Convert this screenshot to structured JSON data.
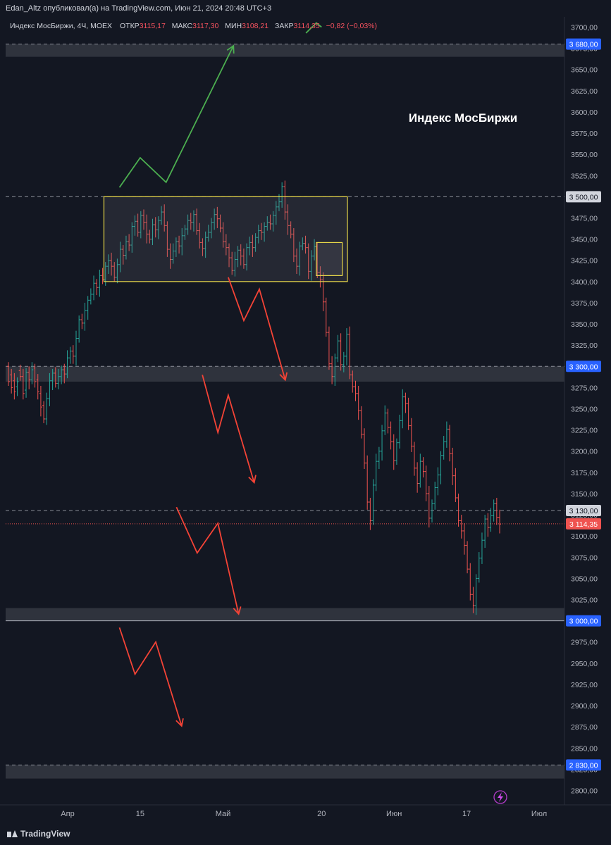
{
  "header": {
    "publish_line": "Edan_Altz опубликовал(а) на TradingView.com, Июн 21, 2024 20:48 UTC+3",
    "symbol_line": "Индекс МосБиржи, 4Ч, MOEX",
    "open_label": "ОТКР",
    "open_value": "3115,17",
    "high_label": "МАКС",
    "high_value": "3117,30",
    "low_label": "МИН",
    "low_value": "3108,21",
    "close_label": "ЗАКР",
    "close_value": "3114,35",
    "change": "−0,82 (−0,03%)"
  },
  "colors": {
    "background": "#131722",
    "up": "#26a69a",
    "down": "#ef5350",
    "box": "#e8d84a",
    "green_arrow": "#4caf50",
    "red_arrow": "#f44336",
    "axis_text": "#b2b5be",
    "zone": "#3a3d47",
    "accent": "#2962ff"
  },
  "footer": {
    "brand": "TradingView",
    "icon": "lightning-icon"
  },
  "chart_data": {
    "type": "candlestick",
    "title": "Индекс МосБиржи",
    "ylim": [
      2787,
      3713
    ],
    "y_ticks": [
      2800,
      2825,
      2850,
      2875,
      2900,
      2925,
      2950,
      2975,
      3000,
      3025,
      3050,
      3075,
      3100,
      3125,
      3150,
      3175,
      3200,
      3225,
      3250,
      3275,
      3300,
      3325,
      3350,
      3375,
      3400,
      3425,
      3450,
      3475,
      3500,
      3525,
      3550,
      3575,
      3600,
      3625,
      3650,
      3675,
      3700
    ],
    "y_tick_labels": [
      "2800,00",
      "2825,00",
      "2850,00",
      "2875,00",
      "2900,00",
      "2925,00",
      "2950,00",
      "2975,00",
      "3000,00",
      "3025,00",
      "3050,00",
      "3075,00",
      "3100,00",
      "3125,00",
      "3150,00",
      "3175,00",
      "3200,00",
      "3225,00",
      "3250,00",
      "3275,00",
      "3300,00",
      "3325,00",
      "3350,00",
      "3375,00",
      "3400,00",
      "3425,00",
      "3450,00",
      "3475,00",
      "3500,00",
      "3525,00",
      "3550,00",
      "3575,00",
      "3600,00",
      "3625,00",
      "3650,00",
      "3675,00",
      "3700,00"
    ],
    "x_ticks": [
      {
        "label": "Апр",
        "date": "2024-04-01"
      },
      {
        "label": "15",
        "date": "2024-04-15"
      },
      {
        "label": "Май",
        "date": "2024-05-01"
      },
      {
        "label": "20",
        "date": "2024-05-20"
      },
      {
        "label": "Июн",
        "date": "2024-06-03"
      },
      {
        "label": "17",
        "date": "2024-06-17"
      },
      {
        "label": "Июл",
        "date": "2024-07-01"
      }
    ],
    "x_range": [
      "2024-03-19",
      "2024-07-07"
    ],
    "price_badges": [
      {
        "value": 3680,
        "text": "3 680,00",
        "style": "blue"
      },
      {
        "value": 3500,
        "text": "3 500,00",
        "style": "gray"
      },
      {
        "value": 3300,
        "text": "3 300,00",
        "style": "blue"
      },
      {
        "value": 3130,
        "text": "3 130,00",
        "style": "gray"
      },
      {
        "value": 3114.35,
        "text": "3 114,35",
        "style": "red"
      },
      {
        "value": 3000,
        "text": "3 000,00",
        "style": "blue"
      },
      {
        "value": 2830,
        "text": "2 830,00",
        "style": "blue"
      }
    ],
    "horizontal_lines": [
      {
        "value": 3680,
        "dashed": true
      },
      {
        "value": 3500,
        "dashed": true
      },
      {
        "value": 3300,
        "dashed": true
      },
      {
        "value": 3130,
        "dashed": true
      },
      {
        "value": 3114.35,
        "dotted": true
      },
      {
        "value": 3000,
        "dashed": false
      },
      {
        "value": 2830,
        "dashed": true
      }
    ],
    "zones": [
      {
        "from": 3665,
        "to": 3680
      },
      {
        "from": 3282,
        "to": 3300
      },
      {
        "from": 3000,
        "to": 3015
      },
      {
        "from": 2814,
        "to": 2830
      }
    ],
    "rectangles": [
      {
        "name": "range-box",
        "x0": "2024-04-08",
        "x1": "2024-05-25",
        "y0": 3400,
        "y1": 3500
      },
      {
        "name": "small-box",
        "x0": "2024-05-19",
        "x1": "2024-05-24",
        "y0": 3407,
        "y1": 3446
      }
    ],
    "arrows": [
      {
        "color": "green",
        "points": [
          [
            "2024-04-11",
            3511
          ],
          [
            "2024-04-15",
            3546
          ],
          [
            "2024-04-20",
            3517
          ],
          [
            "2024-05-03",
            3678
          ]
        ]
      },
      {
        "color": "green",
        "points": [
          [
            "2024-05-17",
            3693
          ],
          [
            "2024-05-19",
            3705
          ],
          [
            "2024-05-20",
            3700
          ]
        ]
      },
      {
        "color": "red",
        "points": [
          [
            "2024-05-02",
            3405
          ],
          [
            "2024-05-05",
            3354
          ],
          [
            "2024-05-08",
            3391
          ],
          [
            "2024-05-13",
            3284
          ]
        ]
      },
      {
        "color": "red",
        "points": [
          [
            "2024-04-27",
            3290
          ],
          [
            "2024-04-30",
            3222
          ],
          [
            "2024-05-02",
            3266
          ],
          [
            "2024-05-07",
            3163
          ]
        ]
      },
      {
        "color": "red",
        "points": [
          [
            "2024-04-22",
            3134
          ],
          [
            "2024-04-26",
            3080
          ],
          [
            "2024-04-30",
            3115
          ],
          [
            "2024-05-04",
            3008
          ]
        ]
      },
      {
        "color": "red",
        "points": [
          [
            "2024-04-11",
            2992
          ],
          [
            "2024-04-14",
            2937
          ],
          [
            "2024-04-18",
            2975
          ],
          [
            "2024-04-23",
            2876
          ]
        ]
      }
    ],
    "points": [
      [
        3300,
        3282
      ],
      [
        3290,
        3275
      ],
      [
        3283,
        3270
      ],
      [
        3276,
        3282
      ],
      [
        3295,
        3288
      ],
      [
        3288,
        3268
      ],
      [
        3272,
        3293
      ],
      [
        3293,
        3284
      ],
      [
        3284,
        3296
      ],
      [
        3298,
        3282
      ],
      [
        3284,
        3270
      ],
      [
        3268,
        3252
      ],
      [
        3254,
        3238
      ],
      [
        3238,
        3262
      ],
      [
        3262,
        3283
      ],
      [
        3283,
        3292
      ],
      [
        3292,
        3280
      ],
      [
        3280,
        3288
      ],
      [
        3288,
        3296
      ],
      [
        3296,
        3291
      ],
      [
        3291,
        3310
      ],
      [
        3310,
        3318
      ],
      [
        3318,
        3312
      ],
      [
        3312,
        3333
      ],
      [
        3333,
        3355
      ],
      [
        3355,
        3351
      ],
      [
        3351,
        3366
      ],
      [
        3366,
        3378
      ],
      [
        3378,
        3385
      ],
      [
        3385,
        3398
      ],
      [
        3398,
        3393
      ],
      [
        3393,
        3407
      ],
      [
        3407,
        3402
      ],
      [
        3402,
        3418
      ],
      [
        3418,
        3425
      ],
      [
        3425,
        3418
      ],
      [
        3418,
        3405
      ],
      [
        3405,
        3420
      ],
      [
        3420,
        3438
      ],
      [
        3438,
        3431
      ],
      [
        3431,
        3447
      ],
      [
        3447,
        3443
      ],
      [
        3443,
        3465
      ],
      [
        3465,
        3471
      ],
      [
        3471,
        3458
      ],
      [
        3458,
        3478
      ],
      [
        3478,
        3470
      ],
      [
        3470,
        3456
      ],
      [
        3456,
        3450
      ],
      [
        3450,
        3467
      ],
      [
        3467,
        3461
      ],
      [
        3461,
        3472
      ],
      [
        3472,
        3482
      ],
      [
        3482,
        3466
      ],
      [
        3466,
        3438
      ],
      [
        3438,
        3426
      ],
      [
        3426,
        3436
      ],
      [
        3436,
        3447
      ],
      [
        3447,
        3442
      ],
      [
        3442,
        3454
      ],
      [
        3454,
        3462
      ],
      [
        3462,
        3472
      ],
      [
        3472,
        3470
      ],
      [
        3470,
        3479
      ],
      [
        3479,
        3460
      ],
      [
        3460,
        3446
      ],
      [
        3446,
        3439
      ],
      [
        3439,
        3452
      ],
      [
        3452,
        3458
      ],
      [
        3458,
        3470
      ],
      [
        3470,
        3479
      ],
      [
        3479,
        3474
      ],
      [
        3474,
        3463
      ],
      [
        3463,
        3447
      ],
      [
        3447,
        3440
      ],
      [
        3440,
        3428
      ],
      [
        3428,
        3413
      ],
      [
        3413,
        3426
      ],
      [
        3426,
        3437
      ],
      [
        3437,
        3430
      ],
      [
        3430,
        3420
      ],
      [
        3420,
        3440
      ],
      [
        3440,
        3446
      ],
      [
        3446,
        3440
      ],
      [
        3440,
        3452
      ],
      [
        3452,
        3460
      ],
      [
        3460,
        3458
      ],
      [
        3458,
        3465
      ],
      [
        3465,
        3470
      ],
      [
        3470,
        3468
      ],
      [
        3468,
        3478
      ],
      [
        3478,
        3488
      ],
      [
        3488,
        3494
      ],
      [
        3494,
        3512
      ],
      [
        3512,
        3482
      ],
      [
        3482,
        3466
      ],
      [
        3466,
        3456
      ],
      [
        3456,
        3430
      ],
      [
        3430,
        3418
      ],
      [
        3418,
        3442
      ],
      [
        3442,
        3445
      ],
      [
        3445,
        3440
      ],
      [
        3440,
        3412
      ],
      [
        3412,
        3430
      ],
      [
        3430,
        3441
      ],
      [
        3441,
        3411
      ],
      [
        3411,
        3402
      ],
      [
        3402,
        3376
      ],
      [
        3376,
        3340
      ],
      [
        3340,
        3303
      ],
      [
        3303,
        3288
      ],
      [
        3288,
        3310
      ],
      [
        3310,
        3330
      ],
      [
        3330,
        3302
      ],
      [
        3302,
        3312
      ],
      [
        3312,
        3338
      ],
      [
        3338,
        3290
      ],
      [
        3290,
        3276
      ],
      [
        3276,
        3268
      ],
      [
        3268,
        3248
      ],
      [
        3248,
        3220
      ],
      [
        3220,
        3186
      ],
      [
        3186,
        3140
      ],
      [
        3140,
        3118
      ],
      [
        3118,
        3160
      ],
      [
        3160,
        3188
      ],
      [
        3188,
        3200
      ],
      [
        3200,
        3224
      ],
      [
        3224,
        3245
      ],
      [
        3245,
        3228
      ],
      [
        3228,
        3211
      ],
      [
        3211,
        3189
      ],
      [
        3189,
        3210
      ],
      [
        3210,
        3236
      ],
      [
        3236,
        3264
      ],
      [
        3264,
        3256
      ],
      [
        3256,
        3230
      ],
      [
        3230,
        3206
      ],
      [
        3206,
        3180
      ],
      [
        3180,
        3162
      ],
      [
        3162,
        3188
      ],
      [
        3188,
        3176
      ],
      [
        3176,
        3150
      ],
      [
        3150,
        3121
      ],
      [
        3121,
        3138
      ],
      [
        3138,
        3157
      ],
      [
        3157,
        3172
      ],
      [
        3172,
        3195
      ],
      [
        3195,
        3211
      ],
      [
        3211,
        3226
      ],
      [
        3226,
        3197
      ],
      [
        3197,
        3171
      ],
      [
        3171,
        3145
      ],
      [
        3145,
        3118
      ],
      [
        3118,
        3106
      ],
      [
        3106,
        3089
      ],
      [
        3089,
        3061
      ],
      [
        3061,
        3031
      ],
      [
        3031,
        3018
      ],
      [
        3018,
        3050
      ],
      [
        3050,
        3074
      ],
      [
        3074,
        3095
      ],
      [
        3095,
        3120
      ],
      [
        3120,
        3110
      ],
      [
        3110,
        3124
      ],
      [
        3124,
        3138
      ],
      [
        3138,
        3122
      ],
      [
        3122,
        3114
      ]
    ]
  }
}
